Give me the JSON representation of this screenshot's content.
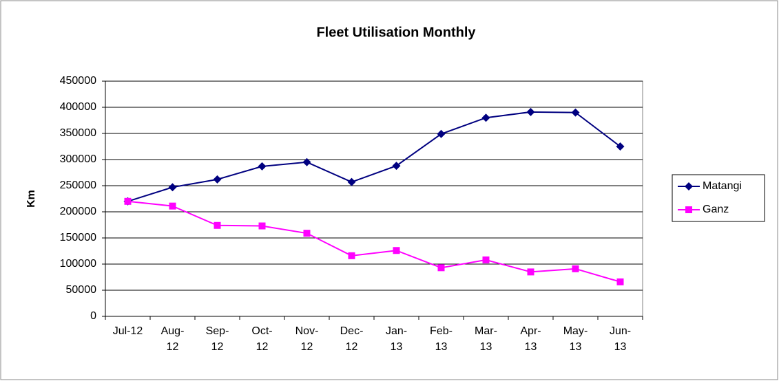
{
  "chart_data": {
    "type": "line",
    "title": "Fleet Utilisation Monthly",
    "y_label": "Km",
    "categories": [
      "Jul-12",
      "Aug-12",
      "Sep-12",
      "Oct-12",
      "Nov-12",
      "Dec-12",
      "Jan-13",
      "Feb-13",
      "Mar-13",
      "Apr-13",
      "May-13",
      "Jun-13"
    ],
    "series": [
      {
        "name": "Matangi",
        "color": "#000080",
        "marker": "diamond",
        "values": [
          220000,
          247000,
          262000,
          287000,
          295000,
          257000,
          288000,
          349000,
          380000,
          391000,
          390000,
          325000
        ]
      },
      {
        "name": "Ganz",
        "color": "#FF00FF",
        "marker": "square",
        "values": [
          220000,
          211000,
          174000,
          173000,
          159000,
          116000,
          126000,
          93000,
          108000,
          85000,
          91000,
          66000
        ]
      }
    ],
    "ylim": [
      0,
      450000
    ],
    "yticks": [
      0,
      50000,
      100000,
      150000,
      200000,
      250000,
      300000,
      350000,
      400000,
      450000
    ],
    "grid": true,
    "legend": "right"
  }
}
